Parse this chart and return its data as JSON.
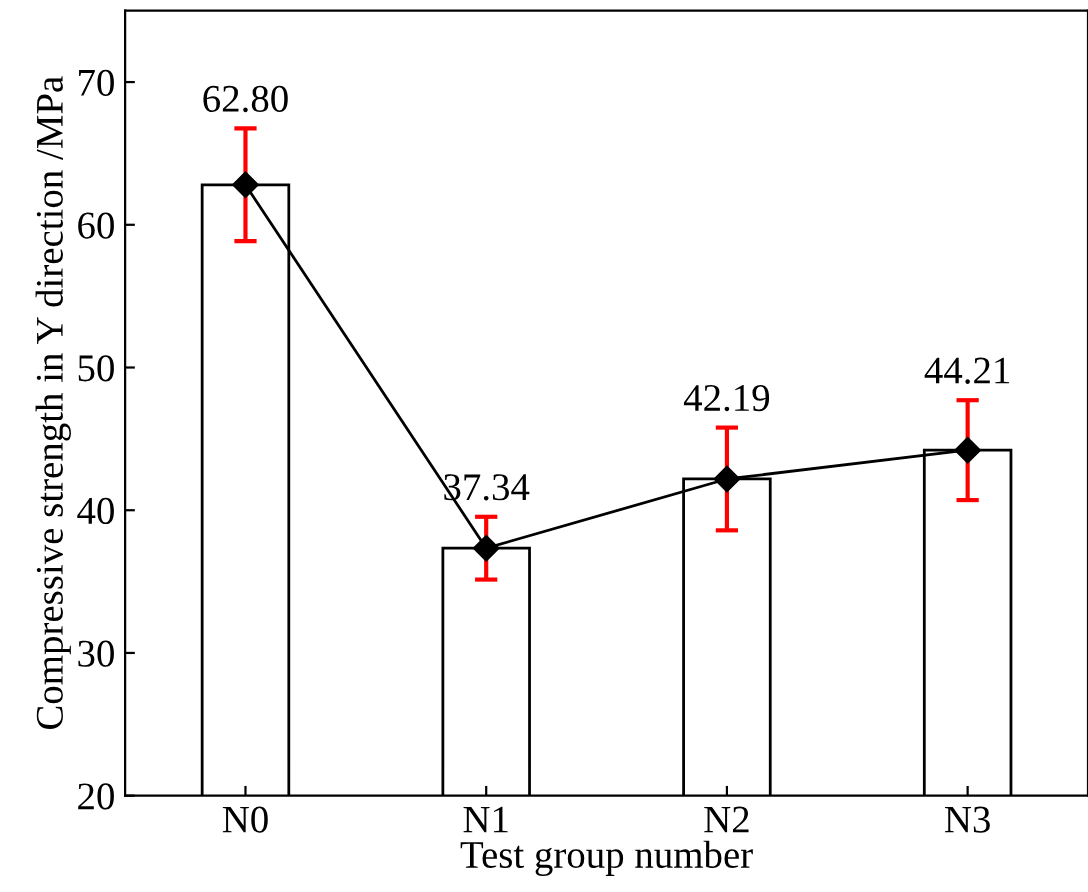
{
  "chart_data": {
    "type": "bar",
    "xlabel": "Test group number",
    "ylabel": "Compressive strength in Y direction /MPa",
    "categories": [
      "N0",
      "N1",
      "N2",
      "N3"
    ],
    "series": [
      {
        "color": "#ffffff",
        "values": [
          62.8,
          37.34,
          42.19,
          44.21
        ],
        "value_labels": [
          "62.80",
          "37.34",
          "42.19",
          "44.21"
        ]
      },
      {
        "type": "line",
        "color": "#000000",
        "values": [
          62.8,
          37.34,
          42.19,
          44.21
        ],
        "errors": [
          3.95,
          2.2,
          3.6,
          3.5
        ],
        "marker": "diamond",
        "line_style": "solid"
      }
    ],
    "ylim": [
      20,
      75
    ],
    "yticks": [
      20,
      30,
      40,
      50,
      60,
      70
    ],
    "grid": false,
    "legend": false
  }
}
